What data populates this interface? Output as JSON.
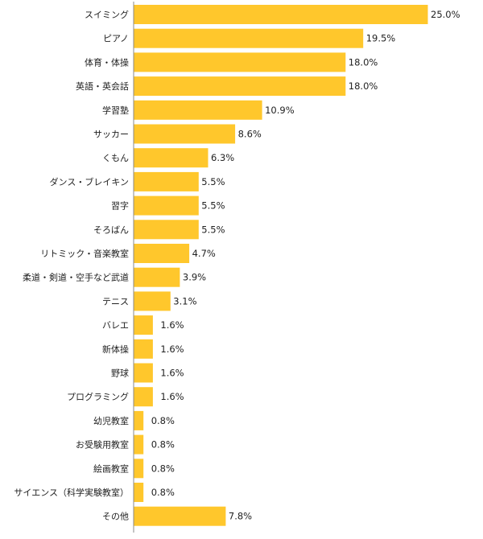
{
  "chart_data": {
    "type": "bar",
    "orientation": "horizontal",
    "title": "",
    "xlabel": "",
    "ylabel": "",
    "xlim": [
      0,
      25
    ],
    "grid": false,
    "legend": "none",
    "bar_color": "#ffc72c",
    "axis_color": "#888888",
    "value_suffix": "%",
    "categories": [
      "スイミング",
      "ピアノ",
      "体育・体操",
      "英語・英会話",
      "学習塾",
      "サッカー",
      "くもん",
      "ダンス・ブレイキン",
      "習字",
      "そろばん",
      "リトミック・音楽教室",
      "柔道・剣道・空手など武道",
      "テニス",
      "バレエ",
      "新体操",
      "野球",
      "プログラミング",
      "幼児教室",
      "お受験用教室",
      "絵画教室",
      "サイエンス（科学実験教室）",
      "その他"
    ],
    "values": [
      25.0,
      19.5,
      18.0,
      18.0,
      10.9,
      8.6,
      6.3,
      5.5,
      5.5,
      5.5,
      4.7,
      3.9,
      3.1,
      1.6,
      1.6,
      1.6,
      1.6,
      0.8,
      0.8,
      0.8,
      0.8,
      7.8
    ],
    "value_labels": [
      "25.0%",
      "19.5%",
      "18.0%",
      "18.0%",
      "10.9%",
      "8.6%",
      "6.3%",
      "5.5%",
      "5.5%",
      "5.5%",
      "4.7%",
      "3.9%",
      "3.1%",
      "1.6%",
      "1.6%",
      "1.6%",
      "1.6%",
      "0.8%",
      "0.8%",
      "0.8%",
      "0.8%",
      "7.8%"
    ]
  }
}
